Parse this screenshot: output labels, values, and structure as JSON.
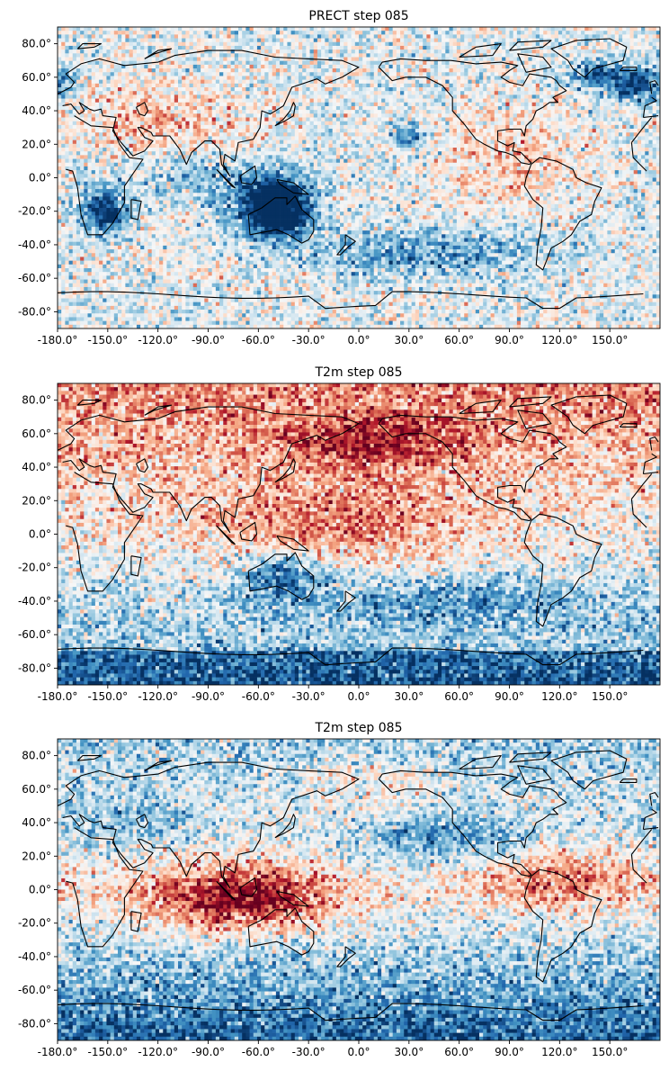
{
  "chart_data": [
    {
      "type": "heatmap",
      "title": "PRECT step 085",
      "xlabel": "",
      "ylabel": "",
      "x_ticks": [
        "-180.0°",
        "-150.0°",
        "-120.0°",
        "-90.0°",
        "-60.0°",
        "-30.0°",
        "0.0°",
        "30.0°",
        "60.0°",
        "90.0°",
        "120.0°",
        "150.0°"
      ],
      "y_ticks": [
        "80.0°",
        "60.0°",
        "40.0°",
        "20.0°",
        "0.0°",
        "-20.0°",
        "-40.0°",
        "-60.0°",
        "-80.0°"
      ],
      "xlim": [
        -180,
        180
      ],
      "ylim": [
        -90,
        90
      ],
      "colormap": "RdBu_r",
      "projection": "PlateCarree, central_longitude 180",
      "coastlines": true,
      "grid": false,
      "legend": "none"
    },
    {
      "type": "heatmap",
      "title": "T2m step 085",
      "xlabel": "",
      "ylabel": "",
      "x_ticks": [
        "-180.0°",
        "-150.0°",
        "-120.0°",
        "-90.0°",
        "-60.0°",
        "-30.0°",
        "0.0°",
        "30.0°",
        "60.0°",
        "90.0°",
        "120.0°",
        "150.0°"
      ],
      "y_ticks": [
        "80.0°",
        "60.0°",
        "40.0°",
        "20.0°",
        "0.0°",
        "-20.0°",
        "-40.0°",
        "-60.0°",
        "-80.0°"
      ],
      "xlim": [
        -180,
        180
      ],
      "ylim": [
        -90,
        90
      ],
      "colormap": "RdBu_r",
      "projection": "PlateCarree, central_longitude 180",
      "coastlines": true,
      "grid": false,
      "legend": "none"
    },
    {
      "type": "heatmap",
      "title": "T2m step 085",
      "xlabel": "",
      "ylabel": "",
      "x_ticks": [
        "-180.0°",
        "-150.0°",
        "-120.0°",
        "-90.0°",
        "-60.0°",
        "-30.0°",
        "0.0°",
        "30.0°",
        "60.0°",
        "90.0°",
        "120.0°",
        "150.0°"
      ],
      "y_ticks": [
        "80.0°",
        "60.0°",
        "40.0°",
        "20.0°",
        "0.0°",
        "-20.0°",
        "-40.0°",
        "-60.0°",
        "-80.0°"
      ],
      "xlim": [
        -180,
        180
      ],
      "ylim": [
        -90,
        90
      ],
      "colormap": "RdBu_r",
      "projection": "PlateCarree, central_longitude 180",
      "coastlines": true,
      "grid": false,
      "legend": "none"
    }
  ],
  "colors": {
    "colormap_stops": [
      "#67001f",
      "#b2182b",
      "#d6604d",
      "#f4a582",
      "#fddbc7",
      "#f7f7f7",
      "#d1e5f0",
      "#92c5de",
      "#4393c3",
      "#2166ac",
      "#053061"
    ],
    "coastline": "#000000",
    "background": "#ffffff"
  }
}
